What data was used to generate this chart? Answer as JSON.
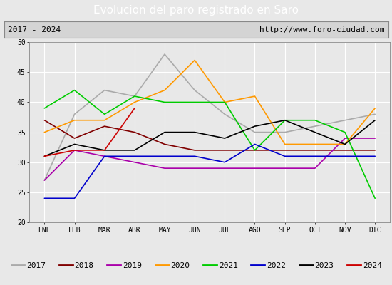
{
  "title": "Evolucion del paro registrado en Saro",
  "subtitle_left": "2017 - 2024",
  "subtitle_right": "http://www.foro-ciudad.com",
  "months": [
    "ENE",
    "FEB",
    "MAR",
    "ABR",
    "MAY",
    "JUN",
    "JUL",
    "AGO",
    "SEP",
    "OCT",
    "NOV",
    "DIC"
  ],
  "ylim": [
    20,
    50
  ],
  "yticks": [
    20,
    25,
    30,
    35,
    40,
    45,
    50
  ],
  "series": {
    "2017": {
      "color": "#aaaaaa",
      "values": [
        27,
        38,
        42,
        41,
        48,
        42,
        38,
        35,
        35,
        36,
        37,
        38
      ]
    },
    "2018": {
      "color": "#800000",
      "values": [
        37,
        34,
        36,
        35,
        33,
        32,
        32,
        32,
        32,
        32,
        32,
        32
      ]
    },
    "2019": {
      "color": "#aa00aa",
      "values": [
        27,
        32,
        31,
        30,
        29,
        29,
        29,
        29,
        29,
        29,
        34,
        34
      ]
    },
    "2020": {
      "color": "#ff9900",
      "values": [
        35,
        37,
        37,
        40,
        42,
        47,
        40,
        41,
        33,
        33,
        33,
        39
      ]
    },
    "2021": {
      "color": "#00cc00",
      "values": [
        39,
        42,
        38,
        41,
        40,
        40,
        40,
        32,
        37,
        37,
        35,
        24
      ]
    },
    "2022": {
      "color": "#0000cc",
      "values": [
        24,
        24,
        31,
        31,
        31,
        31,
        30,
        33,
        31,
        31,
        31,
        31
      ]
    },
    "2023": {
      "color": "#000000",
      "values": [
        31,
        33,
        32,
        32,
        35,
        35,
        34,
        36,
        37,
        35,
        33,
        37
      ]
    },
    "2024": {
      "color": "#cc0000",
      "values": [
        31,
        32,
        32,
        39,
        null,
        null,
        null,
        null,
        null,
        null,
        null,
        null
      ]
    }
  },
  "title_bg_color": "#4d7ebf",
  "title_text_color": "#ffffff",
  "header_bg_color": "#d4d4d4",
  "header_border_color": "#888888",
  "plot_bg_color": "#e8e8e8",
  "legend_bg_color": "#f0f0f0",
  "legend_border_color": "#888888",
  "grid_color": "#ffffff",
  "title_fontsize": 11,
  "header_fontsize": 8,
  "axis_fontsize": 7,
  "legend_fontsize": 8
}
